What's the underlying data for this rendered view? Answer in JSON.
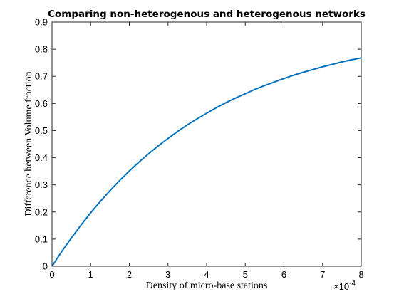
{
  "chart_data": {
    "type": "line",
    "title": "Comparing non-heterogenous and heterogenous networks",
    "xlabel": "Density of micro-base stations",
    "ylabel": "Difference between Volume fraction",
    "x_scale_factor_base": "×10",
    "x_scale_factor_exponent": "-4",
    "xlim": [
      0,
      8
    ],
    "ylim": [
      0,
      0.9
    ],
    "x_ticks": [
      "0",
      "1",
      "2",
      "3",
      "4",
      "5",
      "6",
      "7",
      "8"
    ],
    "y_ticks": [
      "0",
      "0.1",
      "0.2",
      "0.3",
      "0.4",
      "0.5",
      "0.6",
      "0.7",
      "0.8",
      "0.9"
    ],
    "grid": false,
    "series": [
      {
        "color": "#0072BD",
        "x": [
          0,
          0.25,
          0.5,
          0.75,
          1,
          1.25,
          1.5,
          1.75,
          2,
          2.25,
          2.5,
          2.75,
          3,
          3.25,
          3.5,
          3.75,
          4,
          4.25,
          4.5,
          4.75,
          5,
          5.25,
          5.5,
          5.75,
          6,
          6.25,
          6.5,
          6.75,
          7,
          7.25,
          7.5,
          7.75,
          8
        ],
        "y": [
          0,
          0.054,
          0.104,
          0.152,
          0.197,
          0.239,
          0.279,
          0.316,
          0.351,
          0.384,
          0.415,
          0.444,
          0.471,
          0.497,
          0.521,
          0.543,
          0.564,
          0.584,
          0.603,
          0.62,
          0.636,
          0.652,
          0.666,
          0.679,
          0.692,
          0.704,
          0.715,
          0.725,
          0.735,
          0.744,
          0.753,
          0.761,
          0.768
        ]
      }
    ]
  }
}
